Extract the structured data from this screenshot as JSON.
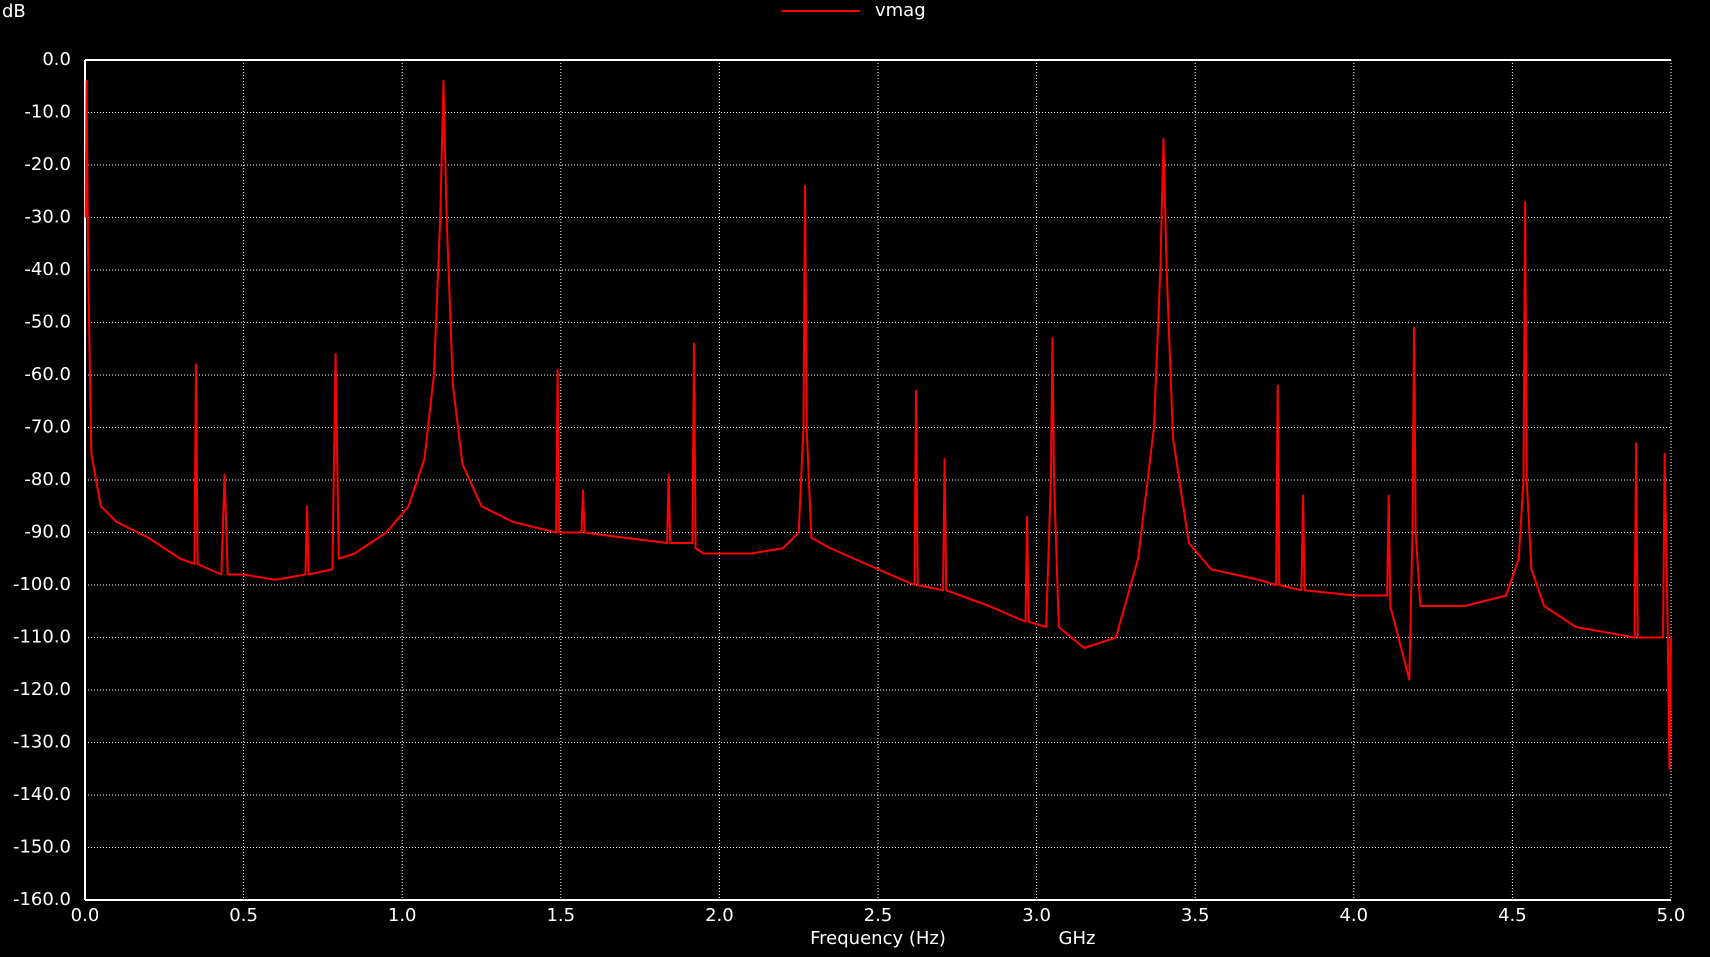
{
  "chart_data": {
    "type": "line",
    "y_unit": "dB",
    "xlabel": "Frequency (Hz)",
    "x_unit": "GHz",
    "x": [
      0.002,
      0.005,
      0.01,
      0.02,
      0.05,
      0.1,
      0.2,
      0.3,
      0.345,
      0.35,
      0.355,
      0.43,
      0.44,
      0.45,
      0.5,
      0.6,
      0.695,
      0.7,
      0.705,
      0.78,
      0.79,
      0.8,
      0.85,
      0.95,
      1.02,
      1.07,
      1.1,
      1.12,
      1.13,
      1.14,
      1.16,
      1.19,
      1.25,
      1.35,
      1.485,
      1.49,
      1.495,
      1.565,
      1.57,
      1.575,
      1.7,
      1.835,
      1.84,
      1.845,
      1.88,
      1.915,
      1.92,
      1.925,
      1.95,
      2.1,
      2.2,
      2.25,
      2.265,
      2.27,
      2.275,
      2.29,
      2.35,
      2.5,
      2.615,
      2.62,
      2.625,
      2.705,
      2.71,
      2.715,
      2.85,
      2.965,
      2.97,
      2.975,
      3.03,
      3.045,
      3.05,
      3.055,
      3.07,
      3.15,
      3.25,
      3.32,
      3.37,
      3.39,
      3.4,
      3.41,
      3.43,
      3.48,
      3.55,
      3.7,
      3.755,
      3.76,
      3.765,
      3.835,
      3.84,
      3.845,
      4.0,
      4.105,
      4.11,
      4.115,
      4.175,
      4.185,
      4.19,
      4.195,
      4.21,
      4.35,
      4.48,
      4.52,
      4.535,
      4.54,
      4.545,
      4.56,
      4.6,
      4.7,
      4.885,
      4.89,
      4.895,
      4.975,
      4.98,
      4.99,
      4.995,
      5.0
    ],
    "series": [
      {
        "name": "vmag",
        "color": "#ff0000",
        "values": [
          -30,
          -4,
          -40,
          -75,
          -85,
          -88,
          -91,
          -95,
          -96,
          -58,
          -96,
          -98,
          -79,
          -98,
          -98,
          -99,
          -98,
          -85,
          -98,
          -97,
          -56,
          -95,
          -94,
          -90,
          -85,
          -76,
          -60,
          -30,
          -4,
          -30,
          -62,
          -77,
          -85,
          -88,
          -90,
          -59,
          -90,
          -90,
          -82,
          -90,
          -91,
          -92,
          -79,
          -92,
          -92,
          -92,
          -54,
          -93,
          -94,
          -94,
          -93,
          -90,
          -70,
          -24,
          -70,
          -91,
          -93,
          -97,
          -100,
          -63,
          -100,
          -101,
          -76,
          -101,
          -104,
          -107,
          -87,
          -107,
          -108,
          -80,
          -53,
          -80,
          -108,
          -112,
          -110,
          -95,
          -70,
          -40,
          -15,
          -40,
          -72,
          -92,
          -97,
          -99,
          -100,
          -62,
          -100,
          -101,
          -83,
          -101,
          -102,
          -102,
          -83,
          -104,
          -118,
          -90,
          -51,
          -90,
          -104,
          -104,
          -102,
          -95,
          -80,
          -27,
          -80,
          -97,
          -104,
          -108,
          -110,
          -73,
          -110,
          -110,
          -75,
          -110,
          -135,
          -110
        ]
      }
    ],
    "xlim": [
      0,
      5
    ],
    "ylim": [
      -160,
      0
    ],
    "xticks": [
      {
        "value": 0,
        "label": "0.0"
      },
      0.5,
      {
        "value": 1,
        "label": "1.0"
      },
      1.5,
      {
        "value": 2,
        "label": "2.0"
      },
      2.5,
      {
        "value": 3,
        "label": "3.0"
      },
      3.5,
      {
        "value": 4,
        "label": "4.0"
      },
      4.5,
      {
        "value": 5,
        "label": "5.0"
      }
    ],
    "yticks": [
      {
        "value": 0,
        "label": "0.0"
      },
      {
        "value": -10,
        "label": "-10.0"
      },
      {
        "value": -20,
        "label": "-20.0"
      },
      {
        "value": -30,
        "label": "-30.0"
      },
      {
        "value": -40,
        "label": "-40.0"
      },
      {
        "value": -50,
        "label": "-50.0"
      },
      {
        "value": -60,
        "label": "-60.0"
      },
      {
        "value": -70,
        "label": "-70.0"
      },
      {
        "value": -80,
        "label": "-80.0"
      },
      {
        "value": -90,
        "label": "-90.0"
      },
      {
        "value": -100,
        "label": "-100.0"
      },
      {
        "value": -110,
        "label": "-110.0"
      },
      {
        "value": -120,
        "label": "-120.0"
      },
      {
        "value": -130,
        "label": "-130.0"
      },
      {
        "value": -140,
        "label": "-140.0"
      },
      {
        "value": -150,
        "label": "-150.0"
      },
      {
        "value": -160,
        "label": "-160.0"
      }
    ],
    "grid": true,
    "legend": "top"
  }
}
